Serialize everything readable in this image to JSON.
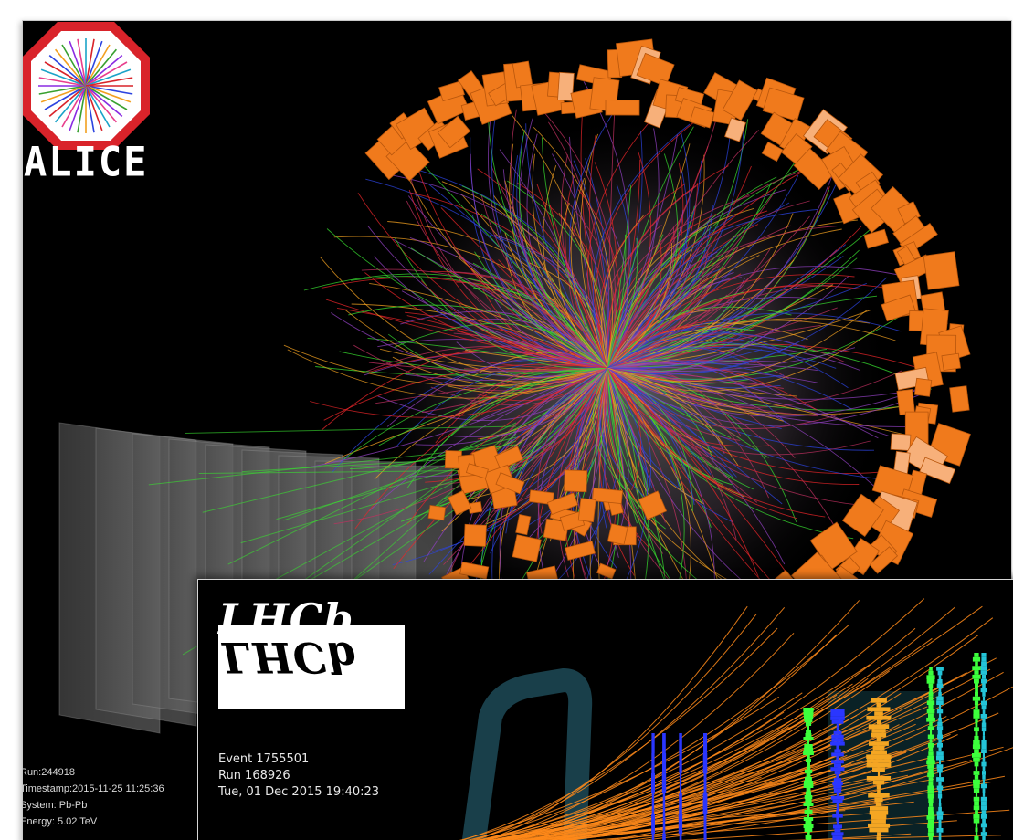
{
  "alice": {
    "wordmark": "ALICE",
    "info": {
      "run": "Run:244918",
      "timestamp": "Timestamp:2015-11-25 11:25:36",
      "system": "System: Pb-Pb",
      "energy": "Energy: 5.02 TeV"
    },
    "colors": {
      "calorimeter": "#f07a1c",
      "logo_ring": "#d9232a",
      "track_red": "#e8262a",
      "track_green": "#38e030",
      "track_blue": "#2c44e0",
      "track_orange": "#f2a020"
    }
  },
  "lhcb": {
    "logo": "LHCb",
    "info": {
      "event": "Event 1755501",
      "run": "Run 168926",
      "datetime": "Tue, 01 Dec 2015 19:40:23"
    },
    "colors": {
      "tracks": "#ff8a1a",
      "blue_hits": "#2a36ff",
      "yellow_hits": "#f4a623",
      "green_hits": "#3cff3c",
      "cyan_hits": "#24c4d8",
      "magnet": "#1f4f5c"
    }
  }
}
